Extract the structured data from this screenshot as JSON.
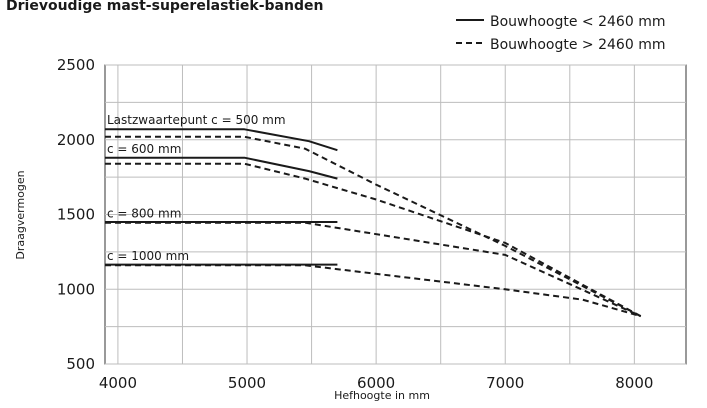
{
  "chart_data": {
    "type": "line",
    "title": "Drievoudige mast-superelastiek-banden",
    "xlabel": "Hefhoogte in mm",
    "ylabel": "Draagvermogen",
    "xlim": [
      3900,
      8400
    ],
    "ylim": [
      500,
      2500
    ],
    "xticks": [
      4000,
      5000,
      6000,
      7000,
      8000
    ],
    "yticks": [
      500,
      1000,
      1500,
      2000,
      2500
    ],
    "grid": true,
    "legend_position": "top-right",
    "legend": [
      {
        "label": "Bouwhoogte < 2460 mm",
        "style": "solid"
      },
      {
        "label": "Bouwhoogte > 2460 mm",
        "style": "dashed"
      }
    ],
    "series": [
      {
        "group": "c500",
        "style": "solid",
        "points": [
          [
            3900,
            2070
          ],
          [
            4980,
            2070
          ],
          [
            5480,
            1990
          ],
          [
            5700,
            1930
          ]
        ]
      },
      {
        "group": "c500",
        "style": "dashed",
        "points": [
          [
            3900,
            2020
          ],
          [
            4980,
            2020
          ],
          [
            5450,
            1940
          ],
          [
            6000,
            1700
          ],
          [
            7000,
            1290
          ],
          [
            8050,
            820
          ]
        ]
      },
      {
        "group": "c600",
        "style": "solid",
        "points": [
          [
            3900,
            1880
          ],
          [
            4980,
            1880
          ],
          [
            5480,
            1790
          ],
          [
            5700,
            1740
          ]
        ]
      },
      {
        "group": "c600",
        "style": "dashed",
        "points": [
          [
            3900,
            1840
          ],
          [
            4980,
            1840
          ],
          [
            5450,
            1740
          ],
          [
            6000,
            1600
          ],
          [
            7000,
            1310
          ],
          [
            8050,
            820
          ]
        ]
      },
      {
        "group": "c800",
        "style": "solid",
        "points": [
          [
            3900,
            1450
          ],
          [
            5700,
            1450
          ]
        ]
      },
      {
        "group": "c800",
        "style": "dashed",
        "points": [
          [
            3900,
            1445
          ],
          [
            5450,
            1445
          ],
          [
            7000,
            1230
          ],
          [
            8050,
            820
          ]
        ]
      },
      {
        "group": "c1000",
        "style": "solid",
        "points": [
          [
            3900,
            1165
          ],
          [
            5700,
            1165
          ]
        ]
      },
      {
        "group": "c1000",
        "style": "dashed",
        "points": [
          [
            3900,
            1160
          ],
          [
            5450,
            1160
          ],
          [
            7000,
            1000
          ],
          [
            7600,
            930
          ],
          [
            8050,
            820
          ]
        ]
      }
    ],
    "annotations": [
      {
        "text": "Lastzwaartepunt c = 500 mm",
        "x": 3900,
        "y": 2105
      },
      {
        "text": "c = 600 mm",
        "x": 3900,
        "y": 1910
      },
      {
        "text": "c = 800 mm",
        "x": 3900,
        "y": 1480
      },
      {
        "text": "c = 1000 mm",
        "x": 3900,
        "y": 1195
      }
    ]
  }
}
